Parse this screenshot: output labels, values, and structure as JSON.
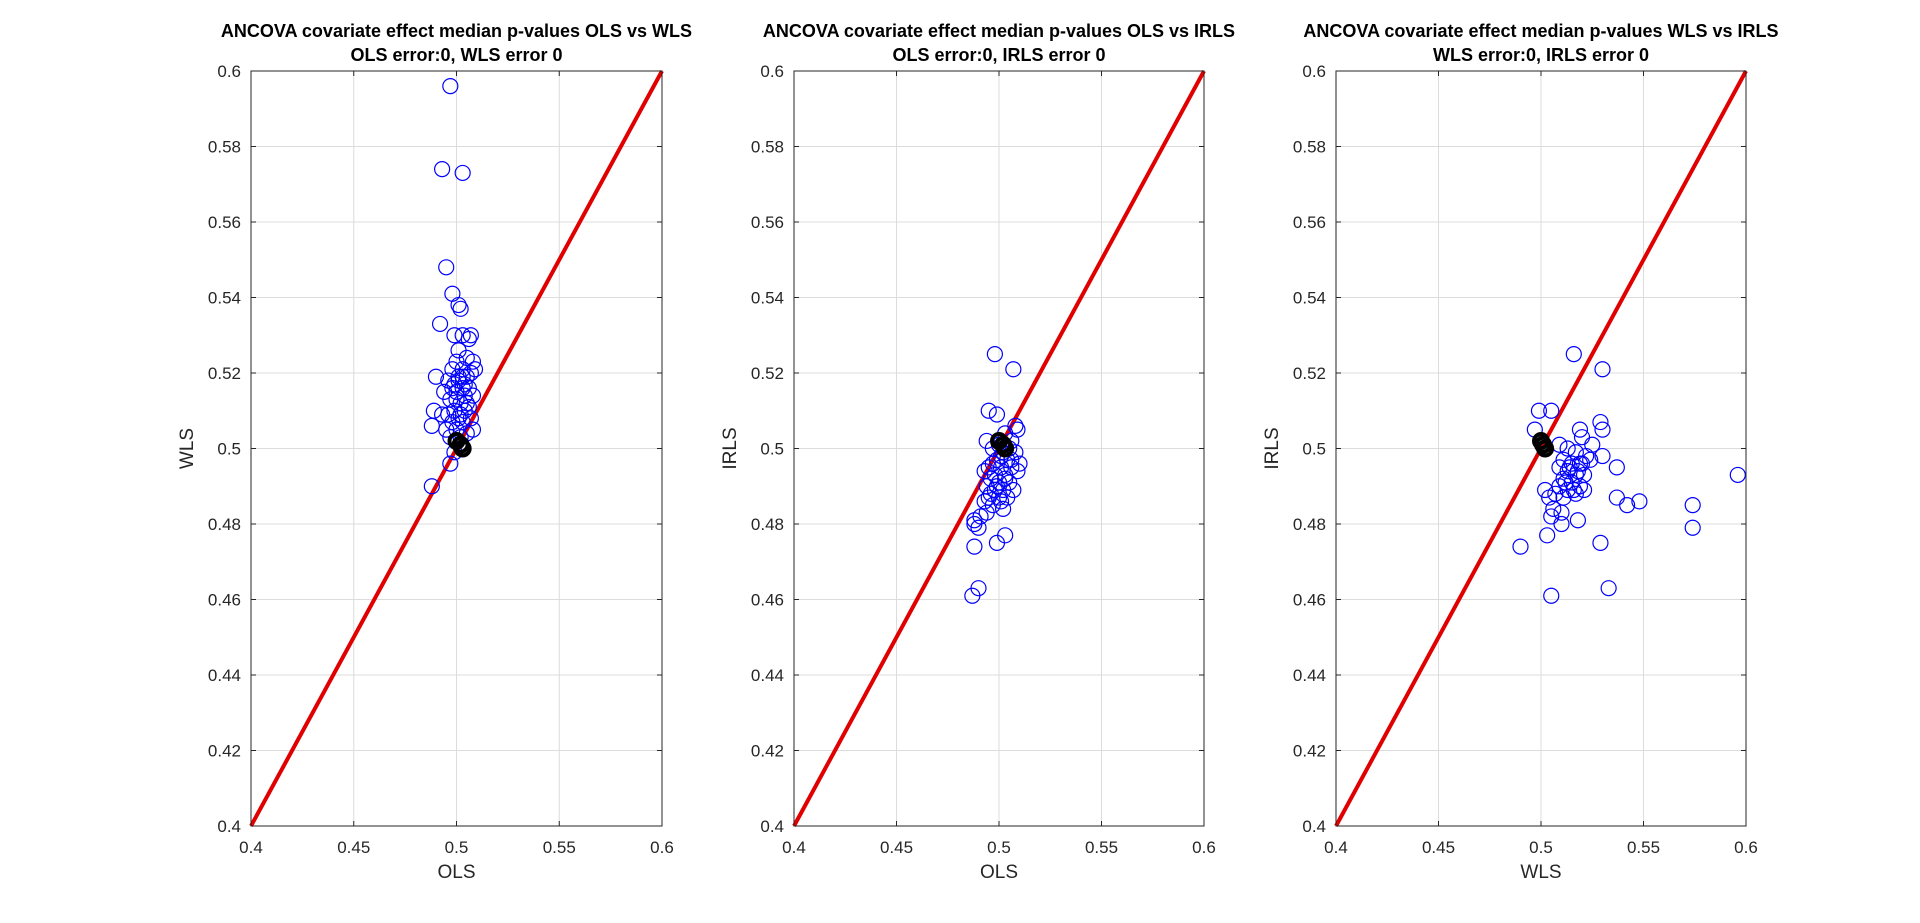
{
  "chart_data": [
    {
      "type": "scatter",
      "title": "ANCOVA covariate effect median p-values OLS vs WLS",
      "subtitle": "OLS error:0, WLS error 0",
      "xlabel": "OLS",
      "ylabel": "WLS",
      "xlim": [
        0.4,
        0.6
      ],
      "ylim": [
        0.4,
        0.6
      ],
      "xticks": [
        "0.4",
        "0.45",
        "0.5",
        "0.55",
        "0.6"
      ],
      "yticks": [
        "0.4",
        "0.42",
        "0.44",
        "0.46",
        "0.48",
        "0.5",
        "0.52",
        "0.54",
        "0.56",
        "0.58",
        "0.6"
      ],
      "grid": true,
      "reference_line": {
        "from": [
          0.4,
          0.4
        ],
        "to": [
          0.6,
          0.6
        ],
        "color": "#e00000"
      },
      "highlight_points": [
        [
          0.5,
          0.502
        ],
        [
          0.502,
          0.501
        ],
        [
          0.503,
          0.5
        ]
      ],
      "points": [
        [
          0.497,
          0.596
        ],
        [
          0.493,
          0.574
        ],
        [
          0.503,
          0.573
        ],
        [
          0.495,
          0.548
        ],
        [
          0.498,
          0.541
        ],
        [
          0.501,
          0.538
        ],
        [
          0.502,
          0.537
        ],
        [
          0.492,
          0.533
        ],
        [
          0.499,
          0.53
        ],
        [
          0.503,
          0.53
        ],
        [
          0.507,
          0.53
        ],
        [
          0.506,
          0.529
        ],
        [
          0.501,
          0.526
        ],
        [
          0.5,
          0.523
        ],
        [
          0.505,
          0.524
        ],
        [
          0.508,
          0.523
        ],
        [
          0.498,
          0.521
        ],
        [
          0.503,
          0.521
        ],
        [
          0.509,
          0.521
        ],
        [
          0.49,
          0.519
        ],
        [
          0.496,
          0.518
        ],
        [
          0.501,
          0.519
        ],
        [
          0.505,
          0.519
        ],
        [
          0.507,
          0.52
        ],
        [
          0.499,
          0.517
        ],
        [
          0.503,
          0.516
        ],
        [
          0.506,
          0.516
        ],
        [
          0.494,
          0.515
        ],
        [
          0.5,
          0.515
        ],
        [
          0.504,
          0.514
        ],
        [
          0.508,
          0.514
        ],
        [
          0.497,
          0.513
        ],
        [
          0.502,
          0.512
        ],
        [
          0.505,
          0.512
        ],
        [
          0.499,
          0.51
        ],
        [
          0.504,
          0.51
        ],
        [
          0.489,
          0.51
        ],
        [
          0.493,
          0.509
        ],
        [
          0.496,
          0.509
        ],
        [
          0.501,
          0.508
        ],
        [
          0.507,
          0.508
        ],
        [
          0.498,
          0.507
        ],
        [
          0.503,
          0.507
        ],
        [
          0.488,
          0.506
        ],
        [
          0.495,
          0.505
        ],
        [
          0.5,
          0.505
        ],
        [
          0.508,
          0.505
        ],
        [
          0.497,
          0.503
        ],
        [
          0.505,
          0.504
        ],
        [
          0.502,
          0.503
        ],
        [
          0.499,
          0.499
        ],
        [
          0.497,
          0.496
        ],
        [
          0.488,
          0.49
        ],
        [
          0.501,
          0.518
        ],
        [
          0.504,
          0.517
        ],
        [
          0.5,
          0.513
        ],
        [
          0.502,
          0.509
        ],
        [
          0.506,
          0.511
        ],
        [
          0.498,
          0.516
        ],
        [
          0.503,
          0.519
        ]
      ]
    },
    {
      "type": "scatter",
      "title": "ANCOVA covariate effect median p-values OLS vs IRLS",
      "subtitle": "OLS error:0, IRLS error 0",
      "xlabel": "OLS",
      "ylabel": "IRLS",
      "xlim": [
        0.4,
        0.6
      ],
      "ylim": [
        0.4,
        0.6
      ],
      "xticks": [
        "0.4",
        "0.45",
        "0.5",
        "0.55",
        "0.6"
      ],
      "yticks": [
        "0.4",
        "0.42",
        "0.44",
        "0.46",
        "0.48",
        "0.5",
        "0.52",
        "0.54",
        "0.56",
        "0.58",
        "0.6"
      ],
      "grid": true,
      "reference_line": {
        "from": [
          0.4,
          0.4
        ],
        "to": [
          0.6,
          0.6
        ],
        "color": "#e00000"
      },
      "highlight_points": [
        [
          0.5,
          0.502
        ],
        [
          0.502,
          0.501
        ],
        [
          0.503,
          0.5
        ]
      ],
      "points": [
        [
          0.498,
          0.525
        ],
        [
          0.507,
          0.521
        ],
        [
          0.495,
          0.51
        ],
        [
          0.499,
          0.509
        ],
        [
          0.508,
          0.506
        ],
        [
          0.509,
          0.505
        ],
        [
          0.503,
          0.504
        ],
        [
          0.494,
          0.502
        ],
        [
          0.5,
          0.501
        ],
        [
          0.506,
          0.502
        ],
        [
          0.497,
          0.5
        ],
        [
          0.502,
          0.499
        ],
        [
          0.508,
          0.499
        ],
        [
          0.499,
          0.497
        ],
        [
          0.504,
          0.497
        ],
        [
          0.51,
          0.496
        ],
        [
          0.495,
          0.495
        ],
        [
          0.501,
          0.495
        ],
        [
          0.506,
          0.495
        ],
        [
          0.493,
          0.494
        ],
        [
          0.498,
          0.493
        ],
        [
          0.503,
          0.493
        ],
        [
          0.509,
          0.494
        ],
        [
          0.496,
          0.492
        ],
        [
          0.5,
          0.491
        ],
        [
          0.505,
          0.491
        ],
        [
          0.494,
          0.49
        ],
        [
          0.498,
          0.489
        ],
        [
          0.502,
          0.489
        ],
        [
          0.507,
          0.489
        ],
        [
          0.495,
          0.487
        ],
        [
          0.5,
          0.487
        ],
        [
          0.504,
          0.487
        ],
        [
          0.493,
          0.486
        ],
        [
          0.497,
          0.485
        ],
        [
          0.502,
          0.484
        ],
        [
          0.494,
          0.483
        ],
        [
          0.491,
          0.482
        ],
        [
          0.488,
          0.481
        ],
        [
          0.488,
          0.48
        ],
        [
          0.49,
          0.479
        ],
        [
          0.503,
          0.477
        ],
        [
          0.499,
          0.475
        ],
        [
          0.488,
          0.474
        ],
        [
          0.49,
          0.463
        ],
        [
          0.487,
          0.461
        ],
        [
          0.501,
          0.498
        ],
        [
          0.505,
          0.5
        ],
        [
          0.497,
          0.496
        ],
        [
          0.503,
          0.492
        ],
        [
          0.499,
          0.49
        ],
        [
          0.506,
          0.497
        ],
        [
          0.501,
          0.486
        ],
        [
          0.496,
          0.488
        ]
      ]
    },
    {
      "type": "scatter",
      "title": "ANCOVA covariate effect median p-values WLS vs IRLS",
      "subtitle": "WLS error:0, IRLS error 0",
      "xlabel": "WLS",
      "ylabel": "IRLS",
      "xlim": [
        0.4,
        0.6
      ],
      "ylim": [
        0.4,
        0.6
      ],
      "xticks": [
        "0.4",
        "0.45",
        "0.5",
        "0.55",
        "0.6"
      ],
      "yticks": [
        "0.4",
        "0.42",
        "0.44",
        "0.46",
        "0.48",
        "0.5",
        "0.52",
        "0.54",
        "0.56",
        "0.58",
        "0.6"
      ],
      "grid": true,
      "reference_line": {
        "from": [
          0.4,
          0.4
        ],
        "to": [
          0.6,
          0.6
        ],
        "color": "#e00000"
      },
      "highlight_points": [
        [
          0.5,
          0.502
        ],
        [
          0.501,
          0.501
        ],
        [
          0.502,
          0.5
        ]
      ],
      "points": [
        [
          0.516,
          0.525
        ],
        [
          0.53,
          0.521
        ],
        [
          0.499,
          0.51
        ],
        [
          0.505,
          0.51
        ],
        [
          0.529,
          0.507
        ],
        [
          0.53,
          0.505
        ],
        [
          0.519,
          0.505
        ],
        [
          0.497,
          0.505
        ],
        [
          0.509,
          0.501
        ],
        [
          0.52,
          0.503
        ],
        [
          0.525,
          0.501
        ],
        [
          0.513,
          0.5
        ],
        [
          0.517,
          0.499
        ],
        [
          0.522,
          0.498
        ],
        [
          0.53,
          0.498
        ],
        [
          0.511,
          0.497
        ],
        [
          0.515,
          0.496
        ],
        [
          0.519,
          0.496
        ],
        [
          0.524,
          0.497
        ],
        [
          0.537,
          0.495
        ],
        [
          0.509,
          0.495
        ],
        [
          0.513,
          0.494
        ],
        [
          0.517,
          0.493
        ],
        [
          0.521,
          0.493
        ],
        [
          0.511,
          0.492
        ],
        [
          0.515,
          0.491
        ],
        [
          0.519,
          0.49
        ],
        [
          0.509,
          0.49
        ],
        [
          0.513,
          0.489
        ],
        [
          0.517,
          0.488
        ],
        [
          0.521,
          0.489
        ],
        [
          0.507,
          0.488
        ],
        [
          0.511,
          0.487
        ],
        [
          0.502,
          0.489
        ],
        [
          0.504,
          0.487
        ],
        [
          0.537,
          0.487
        ],
        [
          0.548,
          0.486
        ],
        [
          0.542,
          0.485
        ],
        [
          0.574,
          0.485
        ],
        [
          0.506,
          0.484
        ],
        [
          0.51,
          0.483
        ],
        [
          0.505,
          0.482
        ],
        [
          0.518,
          0.481
        ],
        [
          0.51,
          0.48
        ],
        [
          0.574,
          0.479
        ],
        [
          0.503,
          0.477
        ],
        [
          0.529,
          0.475
        ],
        [
          0.49,
          0.474
        ],
        [
          0.596,
          0.493
        ],
        [
          0.533,
          0.463
        ],
        [
          0.505,
          0.461
        ],
        [
          0.514,
          0.495
        ],
        [
          0.518,
          0.494
        ],
        [
          0.512,
          0.491
        ],
        [
          0.516,
          0.489
        ],
        [
          0.52,
          0.496
        ]
      ]
    }
  ],
  "colors": {
    "points": "#0000ff",
    "highlight": "#000000",
    "reference_line": "#e00000",
    "grid": "#dcdcdc",
    "axes": "#262626"
  }
}
